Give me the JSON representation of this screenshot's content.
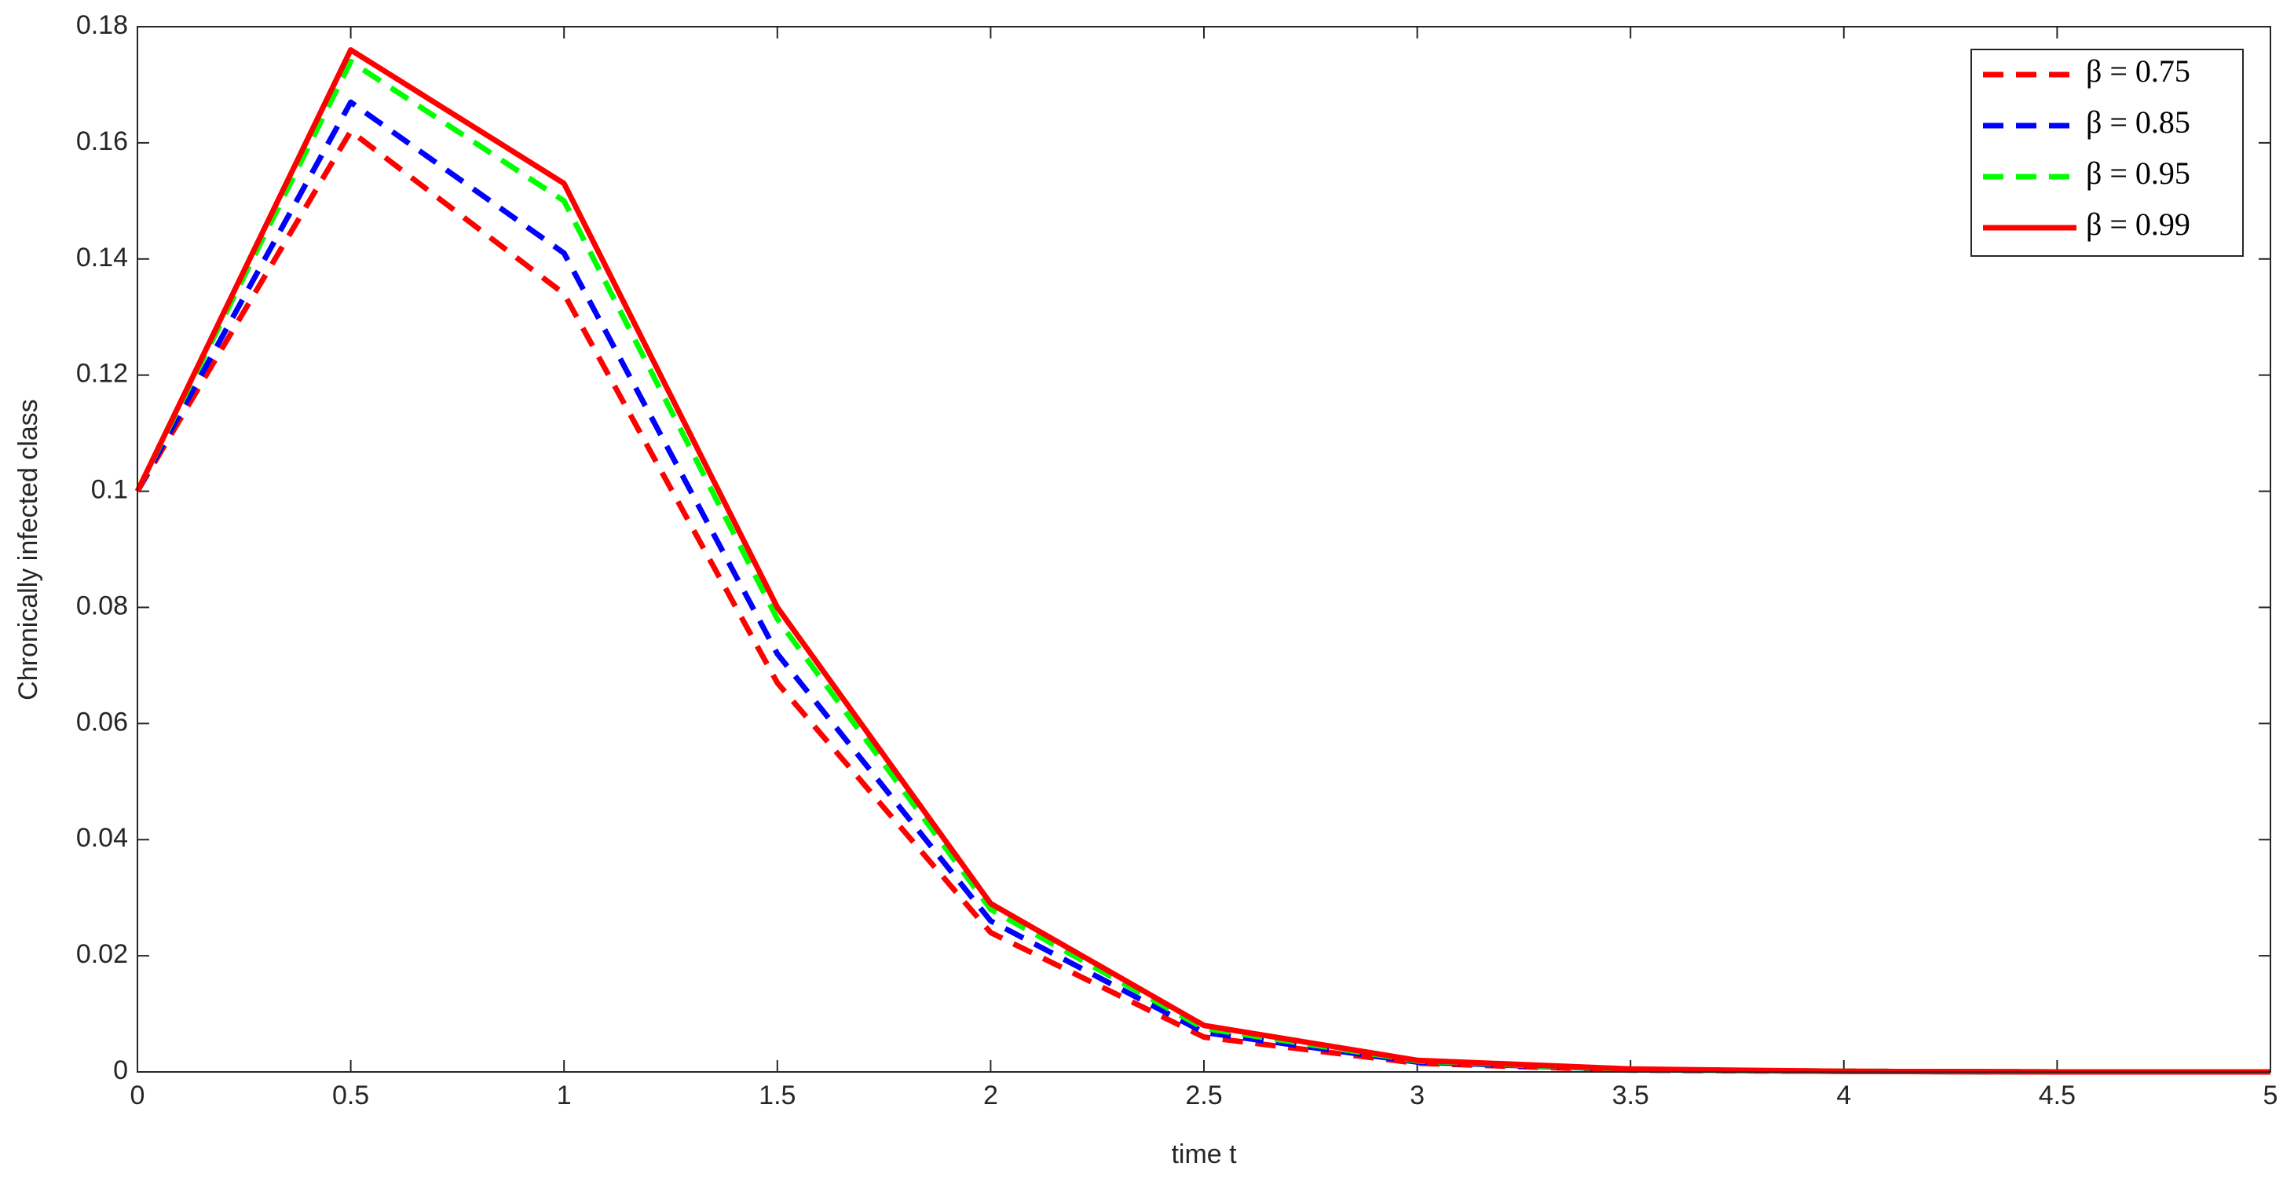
{
  "chart_data": {
    "type": "line",
    "xlabel": "time t",
    "ylabel": "Chronically infected class",
    "x": [
      0,
      0.5,
      1,
      1.5,
      2,
      2.5,
      3,
      3.5,
      4,
      4.5,
      5
    ],
    "series": [
      {
        "name": "β = 0.75",
        "color": "#ff0000",
        "linestyle": "dashed",
        "values": [
          0.1,
          0.162,
          0.134,
          0.067,
          0.024,
          0.006,
          0.0015,
          0.0003,
          0.0001,
          0,
          0
        ]
      },
      {
        "name": "β = 0.85",
        "color": "#0000ff",
        "linestyle": "dashed",
        "values": [
          0.1,
          0.167,
          0.141,
          0.072,
          0.026,
          0.0068,
          0.0017,
          0.0004,
          0.0001,
          0,
          0
        ]
      },
      {
        "name": "β = 0.95",
        "color": "#00ff00",
        "linestyle": "dashed",
        "values": [
          0.1,
          0.174,
          0.15,
          0.078,
          0.028,
          0.0075,
          0.0019,
          0.0004,
          0.0001,
          0,
          0
        ]
      },
      {
        "name": "β = 0.99",
        "color": "#ff0000",
        "linestyle": "solid",
        "values": [
          0.1,
          0.176,
          0.153,
          0.08,
          0.029,
          0.008,
          0.002,
          0.0005,
          0.0001,
          0,
          0
        ]
      }
    ],
    "xlim": [
      0,
      5
    ],
    "xticks": [
      0,
      0.5,
      1,
      1.5,
      2,
      2.5,
      3,
      3.5,
      4,
      4.5,
      5
    ],
    "ylim": [
      0,
      0.18
    ],
    "yticks": [
      0,
      0.02,
      0.04,
      0.06,
      0.08,
      0.1,
      0.12,
      0.14,
      0.16,
      0.18
    ],
    "grid": false,
    "legend": "top-right"
  }
}
